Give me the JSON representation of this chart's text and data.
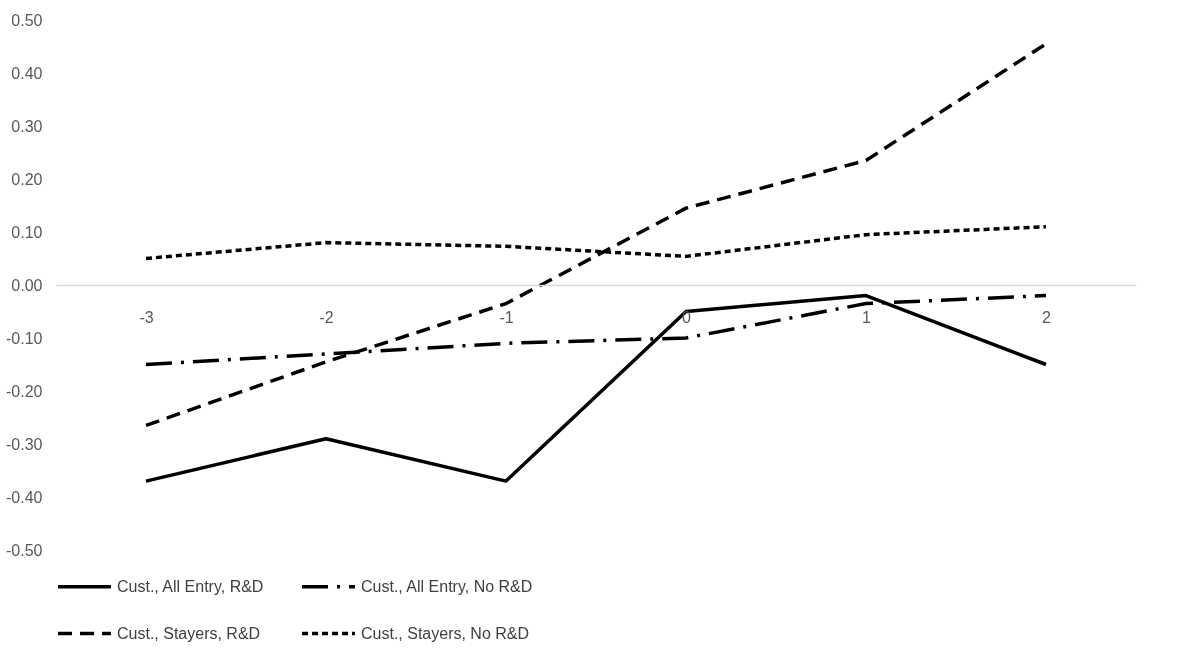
{
  "chart_data": {
    "type": "line",
    "categories": [
      "-3",
      "-2",
      "-1",
      "0",
      "1",
      "2"
    ],
    "ylim": [
      -0.5,
      0.5
    ],
    "yticks": [
      {
        "value": -0.5,
        "label": "-0.50"
      },
      {
        "value": -0.4,
        "label": "-0.40"
      },
      {
        "value": -0.3,
        "label": "-0.30"
      },
      {
        "value": -0.2,
        "label": "-0.20"
      },
      {
        "value": -0.1,
        "label": "-0.10"
      },
      {
        "value": 0,
        "label": "0.00"
      },
      {
        "value": 0.1,
        "label": "0.10"
      },
      {
        "value": 0.2,
        "label": "0.20"
      },
      {
        "value": 0.3,
        "label": "0.30"
      },
      {
        "value": 0.4,
        "label": "0.40"
      },
      {
        "value": 0.5,
        "label": "0.50"
      }
    ],
    "grid": false,
    "legend": "bottom",
    "marker": "none",
    "series": [
      {
        "name": "Cust., All Entry, R&D",
        "color": "#000000",
        "line_style": "solid",
        "values": [
          -0.37,
          -0.29,
          -0.37,
          -0.05,
          -0.02,
          -0.15
        ]
      },
      {
        "name": "Cust., All Entry, No R&D",
        "color": "#000000",
        "line_style": "dashdot",
        "values": [
          -0.15,
          -0.13,
          -0.11,
          -0.1,
          -0.035,
          -0.02
        ]
      },
      {
        "name": "Cust., Stayers, R&D",
        "color": "#000000",
        "line_style": "dashed",
        "values": [
          -0.265,
          -0.145,
          -0.035,
          0.145,
          0.235,
          0.455
        ]
      },
      {
        "name": "Cust., Stayers, No R&D",
        "color": "#000000",
        "line_style": "dotted",
        "values": [
          0.05,
          0.08,
          0.073,
          0.054,
          0.095,
          0.11
        ]
      }
    ]
  }
}
